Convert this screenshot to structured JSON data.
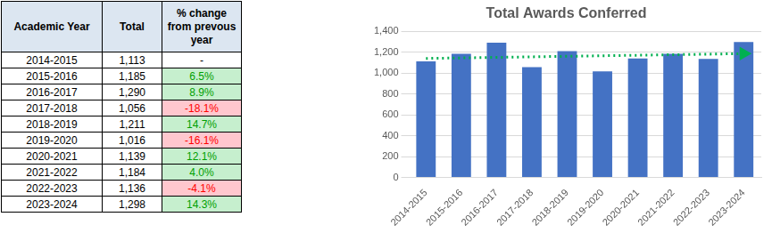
{
  "table": {
    "header": [
      "Academic Year",
      "Total",
      "% change from prevous year"
    ],
    "rows": [
      [
        "2014-2015",
        "1,113",
        "-"
      ],
      [
        "2015-2016",
        "1,185",
        "6.5%"
      ],
      [
        "2016-2017",
        "1,290",
        "8.9%"
      ],
      [
        "2017-2018",
        "1,056",
        "-18.1%"
      ],
      [
        "2018-2019",
        "1,211",
        "14.7%"
      ],
      [
        "2019-2020",
        "1,016",
        "-16.1%"
      ],
      [
        "2020-2021",
        "1,139",
        "12.1%"
      ],
      [
        "2021-2022",
        "1,184",
        "4.0%"
      ],
      [
        "2022-2023",
        "1,136",
        "-4.1%"
      ],
      [
        "2023-2024",
        "1,298",
        "14.3%"
      ]
    ]
  },
  "chart_data": {
    "type": "bar",
    "title": "Total Awards Conferred",
    "categories": [
      "2014-2015",
      "2015-2016",
      "2016-2017",
      "2017-2018",
      "2018-2019",
      "2019-2020",
      "2020-2021",
      "2021-2022",
      "2022-2023",
      "2023-2024"
    ],
    "series": [
      {
        "type": "bar",
        "color": "#4472c4",
        "values": [
          1113,
          1185,
          1290,
          1056,
          1211,
          1016,
          1139,
          1184,
          1136,
          1298
        ]
      },
      {
        "type": "line",
        "color": "#00b050",
        "line_style": "dotted",
        "marker": "arrow",
        "values": [
          1140,
          null,
          null,
          null,
          null,
          null,
          null,
          null,
          null,
          1186
        ]
      }
    ],
    "ylim": [
      0,
      1400
    ],
    "yticks": [
      0,
      200,
      400,
      600,
      800,
      {
        "value": 1000,
        "label": "1,000"
      },
      {
        "value": 1200,
        "label": "1,200"
      },
      {
        "value": 1400,
        "label": "1,400"
      }
    ],
    "grid": true
  }
}
